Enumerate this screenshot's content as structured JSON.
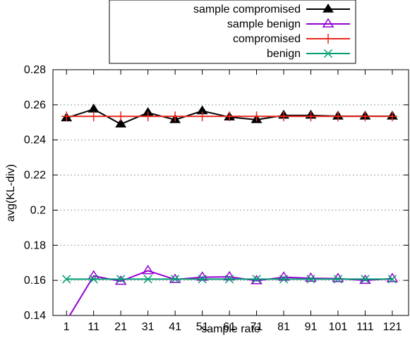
{
  "chart_data": {
    "type": "line",
    "xlabel": "sample rate",
    "ylabel": "avg(KL-div)",
    "x": [
      1,
      11,
      21,
      31,
      41,
      51,
      61,
      71,
      81,
      91,
      101,
      111,
      121
    ],
    "x_tick_labels": [
      "1",
      "11",
      "21",
      "31",
      "41",
      "51",
      "61",
      "71",
      "81",
      "91",
      "101",
      "111",
      "121"
    ],
    "xlim": [
      -4,
      127
    ],
    "ylim": [
      0.14,
      0.28
    ],
    "y_ticks": [
      0.14,
      0.16,
      0.18,
      0.2,
      0.22,
      0.24,
      0.26,
      0.28
    ],
    "y_tick_labels": [
      "0.14",
      "0.16",
      "0.18",
      "0.2",
      "0.22",
      "0.24",
      "0.26",
      "0.28"
    ],
    "grid": true,
    "legend_position": "top-center",
    "series": [
      {
        "name": "sample compromised",
        "color": "#000000",
        "marker": "filled-triangle",
        "values": [
          0.2525,
          0.2575,
          0.249,
          0.2555,
          0.2515,
          0.2565,
          0.253,
          0.2515,
          0.254,
          0.254,
          0.2535,
          0.2535,
          0.2535
        ]
      },
      {
        "name": "sample benign",
        "color": "#9400d3",
        "marker": "open-triangle",
        "values": [
          0.137,
          0.1625,
          0.1595,
          0.1655,
          0.1605,
          0.1618,
          0.162,
          0.1598,
          0.1618,
          0.1612,
          0.161,
          0.16,
          0.161
        ]
      },
      {
        "name": "compromised",
        "color": "#e8281e",
        "marker": "plus",
        "values": [
          0.2534,
          0.2534,
          0.2534,
          0.2534,
          0.2534,
          0.2534,
          0.2534,
          0.2534,
          0.2534,
          0.2534,
          0.2534,
          0.2534,
          0.2534
        ]
      },
      {
        "name": "benign",
        "color": "#009e73",
        "marker": "x",
        "values": [
          0.1607,
          0.1607,
          0.1607,
          0.1607,
          0.1607,
          0.1607,
          0.1607,
          0.1607,
          0.1607,
          0.1607,
          0.1607,
          0.1607,
          0.1607
        ]
      }
    ]
  }
}
